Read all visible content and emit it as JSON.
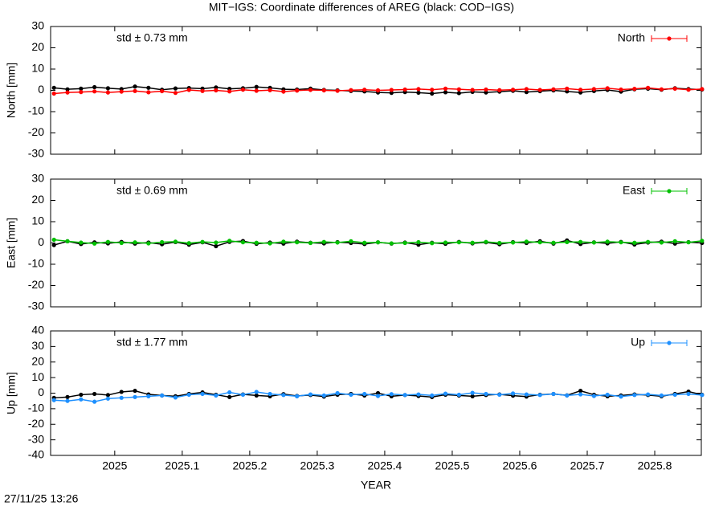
{
  "title": "MIT−IGS: Coordinate differences of AREG (black: COD−IGS)",
  "timestamp": "27/11/25 13:26",
  "chart_data": [
    {
      "type": "line",
      "ylabel": "North [mm]",
      "annotation": "std ± 0.73 mm",
      "legend": "top right",
      "xlim": [
        2024.905,
        2025.869
      ],
      "xticks": [
        2025,
        2025.1,
        2025.2,
        2025.3,
        2025.4,
        2025.5,
        2025.6,
        2025.7,
        2025.8
      ],
      "ylim": [
        -30,
        30
      ],
      "yticks": [
        -30,
        -20,
        -10,
        0,
        10,
        20,
        30
      ],
      "x": [
        2024.91,
        2024.93,
        2024.95,
        2024.97,
        2024.99,
        2025.01,
        2025.03,
        2025.05,
        2025.07,
        2025.09,
        2025.11,
        2025.13,
        2025.15,
        2025.17,
        2025.19,
        2025.21,
        2025.23,
        2025.25,
        2025.27,
        2025.29,
        2025.31,
        2025.33,
        2025.35,
        2025.37,
        2025.39,
        2025.41,
        2025.43,
        2025.45,
        2025.47,
        2025.49,
        2025.51,
        2025.53,
        2025.55,
        2025.57,
        2025.59,
        2025.61,
        2025.63,
        2025.65,
        2025.67,
        2025.69,
        2025.71,
        2025.73,
        2025.75,
        2025.77,
        2025.79,
        2025.81,
        2025.83,
        2025.85,
        2025.87
      ],
      "series": [
        {
          "color": "#000000",
          "values": [
            1.2,
            0.5,
            0.8,
            1.5,
            1.0,
            0.6,
            1.8,
            1.2,
            0.3,
            0.9,
            1.1,
            0.8,
            1.4,
            0.7,
            1.0,
            1.6,
            1.2,
            0.5,
            0.4,
            0.8,
            0.2,
            0.0,
            -0.3,
            -0.5,
            -1.0,
            -1.2,
            -0.8,
            -1.1,
            -1.5,
            -0.9,
            -1.3,
            -0.7,
            -1.0,
            -0.6,
            -0.2,
            -0.8,
            -0.4,
            0.0,
            -0.5,
            -1.0,
            -0.3,
            0.2,
            -0.6,
            0.5,
            0.8,
            0.3,
            1.0,
            0.6,
            0.4
          ]
        },
        {
          "name": "North",
          "color": "#ff0000",
          "values": [
            -1.5,
            -1.0,
            -0.8,
            -0.5,
            -1.0,
            -0.6,
            -0.3,
            -0.9,
            -0.4,
            -1.2,
            0.2,
            -0.3,
            0.0,
            -0.5,
            0.3,
            -0.2,
            0.1,
            -0.6,
            -0.1,
            0.2,
            0.0,
            -0.2,
            0.1,
            0.3,
            0.0,
            0.2,
            0.4,
            0.6,
            0.3,
            0.8,
            0.5,
            0.2,
            0.4,
            0.1,
            0.3,
            0.6,
            0.2,
            0.5,
            0.8,
            0.3,
            0.6,
            1.0,
            0.4,
            0.7,
            1.2,
            0.5,
            0.8,
            0.3,
            0.6
          ]
        }
      ]
    },
    {
      "type": "line",
      "ylabel": "East [mm]",
      "annotation": "std ± 0.69 mm",
      "legend": "top right",
      "xlim": [
        2024.905,
        2025.869
      ],
      "xticks": [
        2025,
        2025.1,
        2025.2,
        2025.3,
        2025.4,
        2025.5,
        2025.6,
        2025.7,
        2025.8
      ],
      "ylim": [
        -30,
        30
      ],
      "yticks": [
        -30,
        -20,
        -10,
        0,
        10,
        20,
        30
      ],
      "x": [
        2024.91,
        2024.93,
        2024.95,
        2024.97,
        2024.99,
        2025.01,
        2025.03,
        2025.05,
        2025.07,
        2025.09,
        2025.11,
        2025.13,
        2025.15,
        2025.17,
        2025.19,
        2025.21,
        2025.23,
        2025.25,
        2025.27,
        2025.29,
        2025.31,
        2025.33,
        2025.35,
        2025.37,
        2025.39,
        2025.41,
        2025.43,
        2025.45,
        2025.47,
        2025.49,
        2025.51,
        2025.53,
        2025.55,
        2025.57,
        2025.59,
        2025.61,
        2025.63,
        2025.65,
        2025.67,
        2025.69,
        2025.71,
        2025.73,
        2025.75,
        2025.77,
        2025.79,
        2025.81,
        2025.83,
        2025.85,
        2025.87
      ],
      "series": [
        {
          "color": "#000000",
          "values": [
            -1.0,
            0.8,
            -0.5,
            0.3,
            -0.2,
            0.5,
            -0.3,
            0.2,
            -0.6,
            0.4,
            -0.8,
            0.3,
            -1.5,
            0.5,
            0.9,
            -0.4,
            0.2,
            -0.3,
            0.6,
            0.1,
            -0.2,
            0.4,
            0.0,
            -0.5,
            0.3,
            -0.3,
            0.2,
            -0.8,
            0.1,
            -0.4,
            0.5,
            -0.2,
            0.3,
            -0.6,
            0.4,
            0.0,
            0.8,
            -0.3,
            1.2,
            -0.5,
            0.3,
            -0.2,
            0.5,
            -0.7,
            0.2,
            0.6,
            -0.3,
            0.4,
            0.0
          ]
        },
        {
          "name": "East",
          "color": "#00c000",
          "values": [
            1.5,
            0.8,
            0.2,
            -0.3,
            0.5,
            0.0,
            0.3,
            -0.2,
            0.4,
            0.6,
            -0.1,
            0.5,
            0.2,
            1.0,
            0.3,
            0.1,
            -0.2,
            0.6,
            0.3,
            0.0,
            0.5,
            0.2,
            0.8,
            0.1,
            0.3,
            -0.2,
            0.0,
            0.4,
            -0.1,
            0.2,
            0.3,
            0.1,
            0.5,
            0.0,
            0.2,
            0.6,
            0.3,
            0.1,
            0.4,
            0.5,
            0.2,
            0.6,
            0.3,
            0.1,
            0.5,
            0.2,
            0.8,
            0.3,
            1.0
          ]
        }
      ]
    },
    {
      "type": "line",
      "ylabel": "Up [mm]",
      "annotation": "std ± 1.77 mm",
      "legend": "top right",
      "xlabel": "YEAR",
      "xlim": [
        2024.905,
        2025.869
      ],
      "xticks": [
        2025,
        2025.1,
        2025.2,
        2025.3,
        2025.4,
        2025.5,
        2025.6,
        2025.7,
        2025.8
      ],
      "ylim": [
        -40,
        40
      ],
      "yticks": [
        -40,
        -30,
        -20,
        -10,
        0,
        10,
        20,
        30,
        40
      ],
      "x": [
        2024.91,
        2024.93,
        2024.95,
        2024.97,
        2024.99,
        2025.01,
        2025.03,
        2025.05,
        2025.07,
        2025.09,
        2025.11,
        2025.13,
        2025.15,
        2025.17,
        2025.19,
        2025.21,
        2025.23,
        2025.25,
        2025.27,
        2025.29,
        2025.31,
        2025.33,
        2025.35,
        2025.37,
        2025.39,
        2025.41,
        2025.43,
        2025.45,
        2025.47,
        2025.49,
        2025.51,
        2025.53,
        2025.55,
        2025.57,
        2025.59,
        2025.61,
        2025.63,
        2025.65,
        2025.67,
        2025.69,
        2025.71,
        2025.73,
        2025.75,
        2025.77,
        2025.79,
        2025.81,
        2025.83,
        2025.85,
        2025.87
      ],
      "series": [
        {
          "color": "#000000",
          "values": [
            -3.0,
            -2.5,
            -1.0,
            -0.5,
            -1.2,
            0.8,
            1.5,
            -0.8,
            -1.5,
            -2.0,
            -0.5,
            0.5,
            -1.0,
            -2.5,
            -0.8,
            -1.5,
            -2.0,
            -0.6,
            -1.8,
            -1.2,
            -2.2,
            -1.0,
            -0.5,
            -1.5,
            0.0,
            -2.0,
            -1.2,
            -1.8,
            -2.5,
            -1.0,
            -1.5,
            -2.0,
            -1.2,
            -0.8,
            -1.6,
            -2.2,
            -1.0,
            -0.5,
            -1.4,
            1.5,
            -1.0,
            -2.0,
            -1.5,
            -0.8,
            -1.2,
            -2.0,
            -0.5,
            1.0,
            -1.0
          ]
        },
        {
          "name": "Up",
          "color": "#1e90ff",
          "values": [
            -4.5,
            -5.0,
            -4.0,
            -5.5,
            -3.5,
            -3.0,
            -2.5,
            -2.0,
            -1.5,
            -2.8,
            -1.0,
            -0.5,
            -1.5,
            0.5,
            -1.0,
            0.8,
            -0.5,
            -1.2,
            -2.0,
            -0.8,
            -1.5,
            0.0,
            -1.0,
            -0.5,
            -1.8,
            -0.6,
            -1.2,
            -0.8,
            -1.5,
            -0.3,
            -1.0,
            0.2,
            -0.5,
            -1.0,
            -0.2,
            -0.8,
            -1.2,
            -0.5,
            -1.5,
            -0.8,
            -1.8,
            -1.0,
            -2.2,
            -1.2,
            -0.8,
            -1.5,
            -1.0,
            -0.5,
            -1.2
          ]
        }
      ]
    }
  ]
}
